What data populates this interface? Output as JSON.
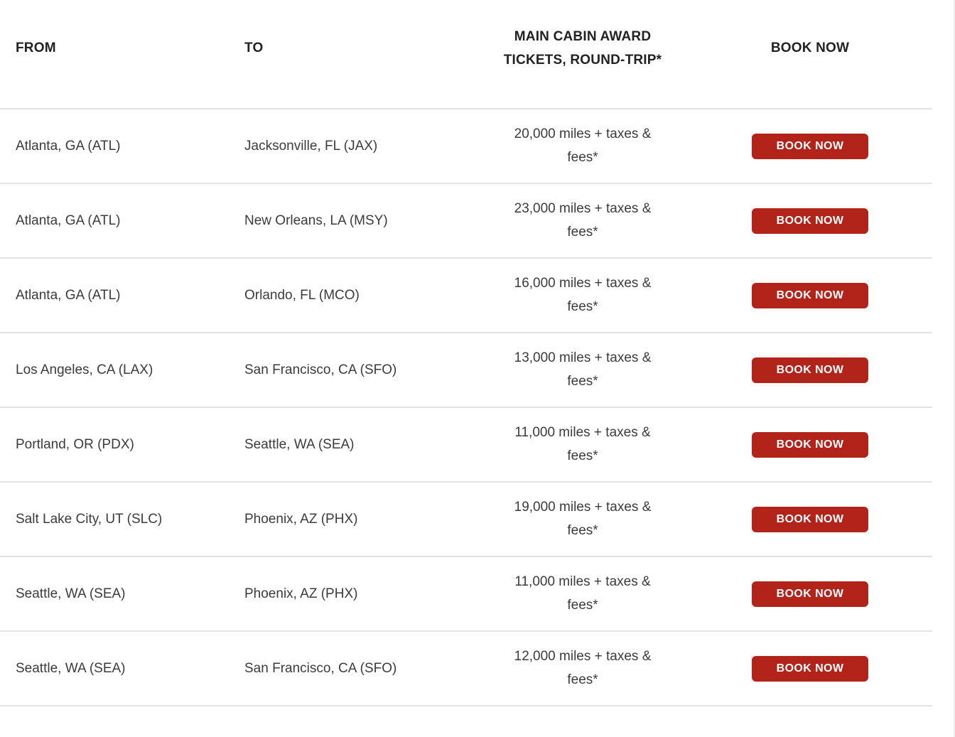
{
  "theme": {
    "accent_red": "#B2231A",
    "divider_gray": "#e3e3e3",
    "body_text": "#3b3b3b",
    "header_text": "#222222"
  },
  "table": {
    "headers": {
      "from": "FROM",
      "to": "TO",
      "award": "MAIN CABIN AWARD TICKETS, ROUND-TRIP*",
      "book": "BOOK NOW"
    },
    "book_button_label": "BOOK NOW",
    "rows": [
      {
        "from": "Atlanta, GA (ATL)",
        "to": "Jacksonville, FL (JAX)",
        "award": "20,000 miles + taxes & fees*"
      },
      {
        "from": "Atlanta, GA (ATL)",
        "to": "New Orleans, LA (MSY)",
        "award": "23,000 miles + taxes & fees*"
      },
      {
        "from": "Atlanta, GA (ATL)",
        "to": "Orlando, FL (MCO)",
        "award": "16,000 miles + taxes & fees*"
      },
      {
        "from": "Los Angeles, CA (LAX)",
        "to": "San Francisco, CA (SFO)",
        "award": "13,000 miles + taxes & fees*"
      },
      {
        "from": "Portland, OR (PDX)",
        "to": "Seattle, WA (SEA)",
        "award": "11,000 miles + taxes & fees*"
      },
      {
        "from": "Salt Lake City, UT (SLC)",
        "to": "Phoenix, AZ (PHX)",
        "award": "19,000 miles + taxes & fees*"
      },
      {
        "from": "Seattle, WA (SEA)",
        "to": "Phoenix, AZ (PHX)",
        "award": "11,000 miles + taxes & fees*"
      },
      {
        "from": "Seattle, WA (SEA)",
        "to": "San Francisco, CA (SFO)",
        "award": "12,000 miles + taxes & fees*"
      }
    ]
  }
}
